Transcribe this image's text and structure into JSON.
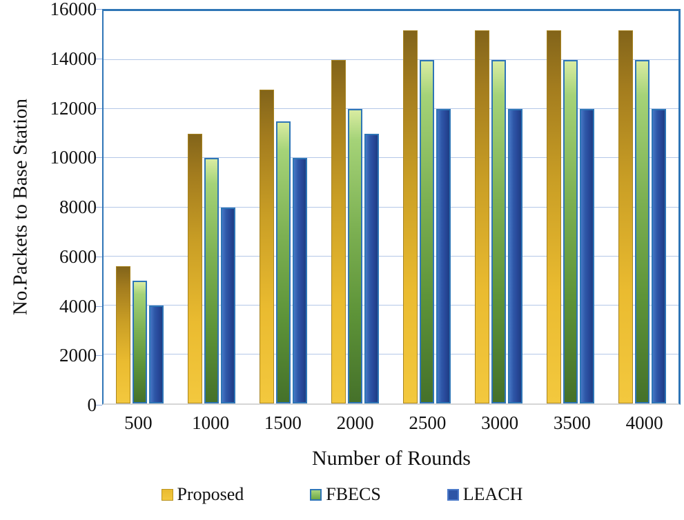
{
  "chart_data": {
    "type": "bar",
    "title": "",
    "xlabel": "Number of Rounds",
    "ylabel": "No.Packets to Base Station",
    "categories": [
      "500",
      "1000",
      "1500",
      "2000",
      "2500",
      "3000",
      "3500",
      "4000"
    ],
    "series": [
      {
        "name": "Proposed",
        "color": "#f0c033",
        "values": [
          5600,
          11000,
          12800,
          14000,
          15200,
          15200,
          15200,
          15200
        ]
      },
      {
        "name": "FBECS",
        "color": "#6fa84c",
        "values": [
          5000,
          10000,
          11500,
          12000,
          14000,
          14000,
          14000,
          14000
        ]
      },
      {
        "name": "LEACH",
        "color": "#2d55a6",
        "values": [
          4000,
          8000,
          10000,
          11000,
          12000,
          12000,
          12000,
          12000
        ]
      }
    ],
    "ylim": [
      0,
      16000
    ],
    "ytick_interval": 2000,
    "ytick_labels": [
      "0",
      "2000",
      "4000",
      "6000",
      "8000",
      "10000",
      "12000",
      "14000",
      "16000"
    ],
    "grid": true,
    "gridline_color": "#b4c7e7",
    "plot_border_color": "#2e75b6",
    "legend_position": "bottom"
  }
}
